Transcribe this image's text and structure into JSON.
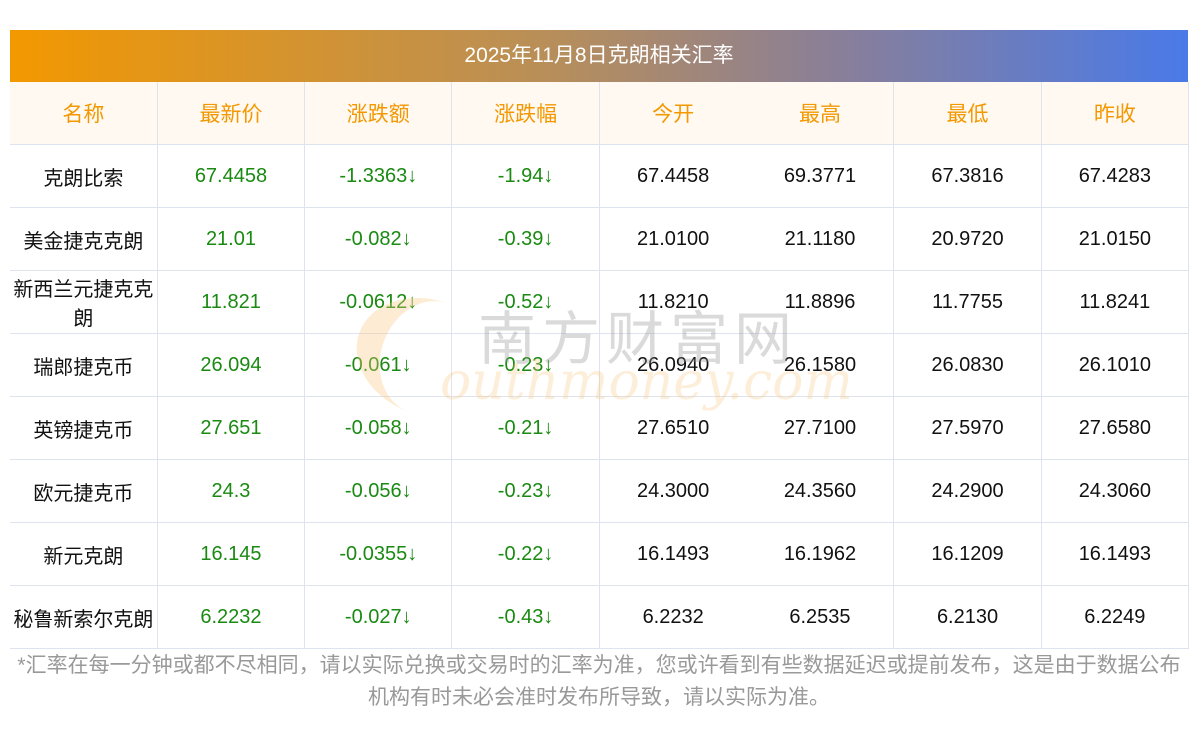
{
  "title": "2025年11月8日克朗相关汇率",
  "headers": [
    "名称",
    "最新价",
    "涨跌额",
    "涨跌幅",
    "今开",
    "最高",
    "最低",
    "昨收"
  ],
  "rows": [
    [
      "克朗比索",
      "67.4458",
      "-1.3363↓",
      "-1.94↓",
      "67.4458",
      "69.3771",
      "67.3816",
      "67.4283"
    ],
    [
      "美金捷克克朗",
      "21.01",
      "-0.082↓",
      "-0.39↓",
      "21.0100",
      "21.1180",
      "20.9720",
      "21.0150"
    ],
    [
      "新西兰元捷克克朗",
      "11.821",
      "-0.0612↓",
      "-0.52↓",
      "11.8210",
      "11.8896",
      "11.7755",
      "11.8241"
    ],
    [
      "瑞郎捷克币",
      "26.094",
      "-0.061↓",
      "-0.23↓",
      "26.0940",
      "26.1580",
      "26.0830",
      "26.1010"
    ],
    [
      "英镑捷克币",
      "27.651",
      "-0.058↓",
      "-0.21↓",
      "27.6510",
      "27.7100",
      "27.5970",
      "27.6580"
    ],
    [
      "欧元捷克币",
      "24.3",
      "-0.056↓",
      "-0.23↓",
      "24.3000",
      "24.3560",
      "24.2900",
      "24.3060"
    ],
    [
      "新元克朗",
      "16.145",
      "-0.0355↓",
      "-0.22↓",
      "16.1493",
      "16.1962",
      "16.1209",
      "16.1493"
    ],
    [
      "秘鲁新索尔克朗",
      "6.2232",
      "-0.027↓",
      "-0.43↓",
      "6.2232",
      "6.2535",
      "6.2130",
      "6.2249"
    ]
  ],
  "watermark": {
    "cn": "南方财富网",
    "en": "outhmoney.com"
  },
  "footnote": "*汇率在每一分钟或都不尽相同，请以实际兑换或交易时的汇率为准，您或许看到有些数据延迟或提前发布，这是由于数据公布机构有时未必会准时发布所导致，请以实际为准。",
  "colors": {
    "header_text": "#f39800",
    "change": "#1a8a12"
  }
}
